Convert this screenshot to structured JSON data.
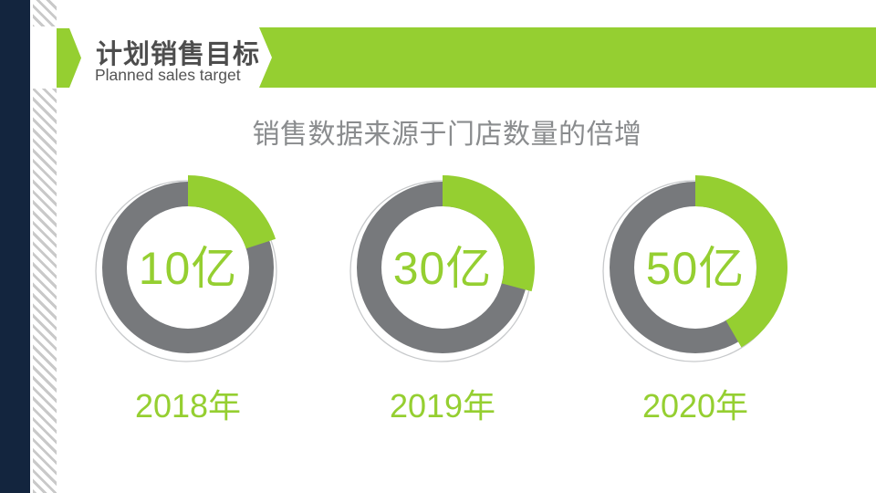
{
  "slide": {
    "header": {
      "title_zh": "计划销售目标",
      "title_en": "Planned sales target"
    },
    "subtitle": "销售数据来源于门店数量的倍增",
    "colors": {
      "green": "#95CF31",
      "ring_gray": "#77797C",
      "navy": "#13253E",
      "thin_circle_gray": "#C7C9CB",
      "title_text": "#4D4D4D",
      "subtitle_text": "#8A8C8E"
    }
  },
  "chart_data": {
    "type": "pie",
    "subtype": "donut-progress-rings",
    "title": "销售数据来源于门店数量的倍增",
    "items": [
      {
        "label": "2018年",
        "value": 10,
        "unit": "亿",
        "value_text": "10亿",
        "arc_degrees": 72
      },
      {
        "label": "2019年",
        "value": 30,
        "unit": "亿",
        "value_text": "30亿",
        "arc_degrees": 105
      },
      {
        "label": "2020年",
        "value": 50,
        "unit": "亿",
        "value_text": "50亿",
        "arc_degrees": 150
      }
    ],
    "legend_position": "none",
    "grid": false
  }
}
